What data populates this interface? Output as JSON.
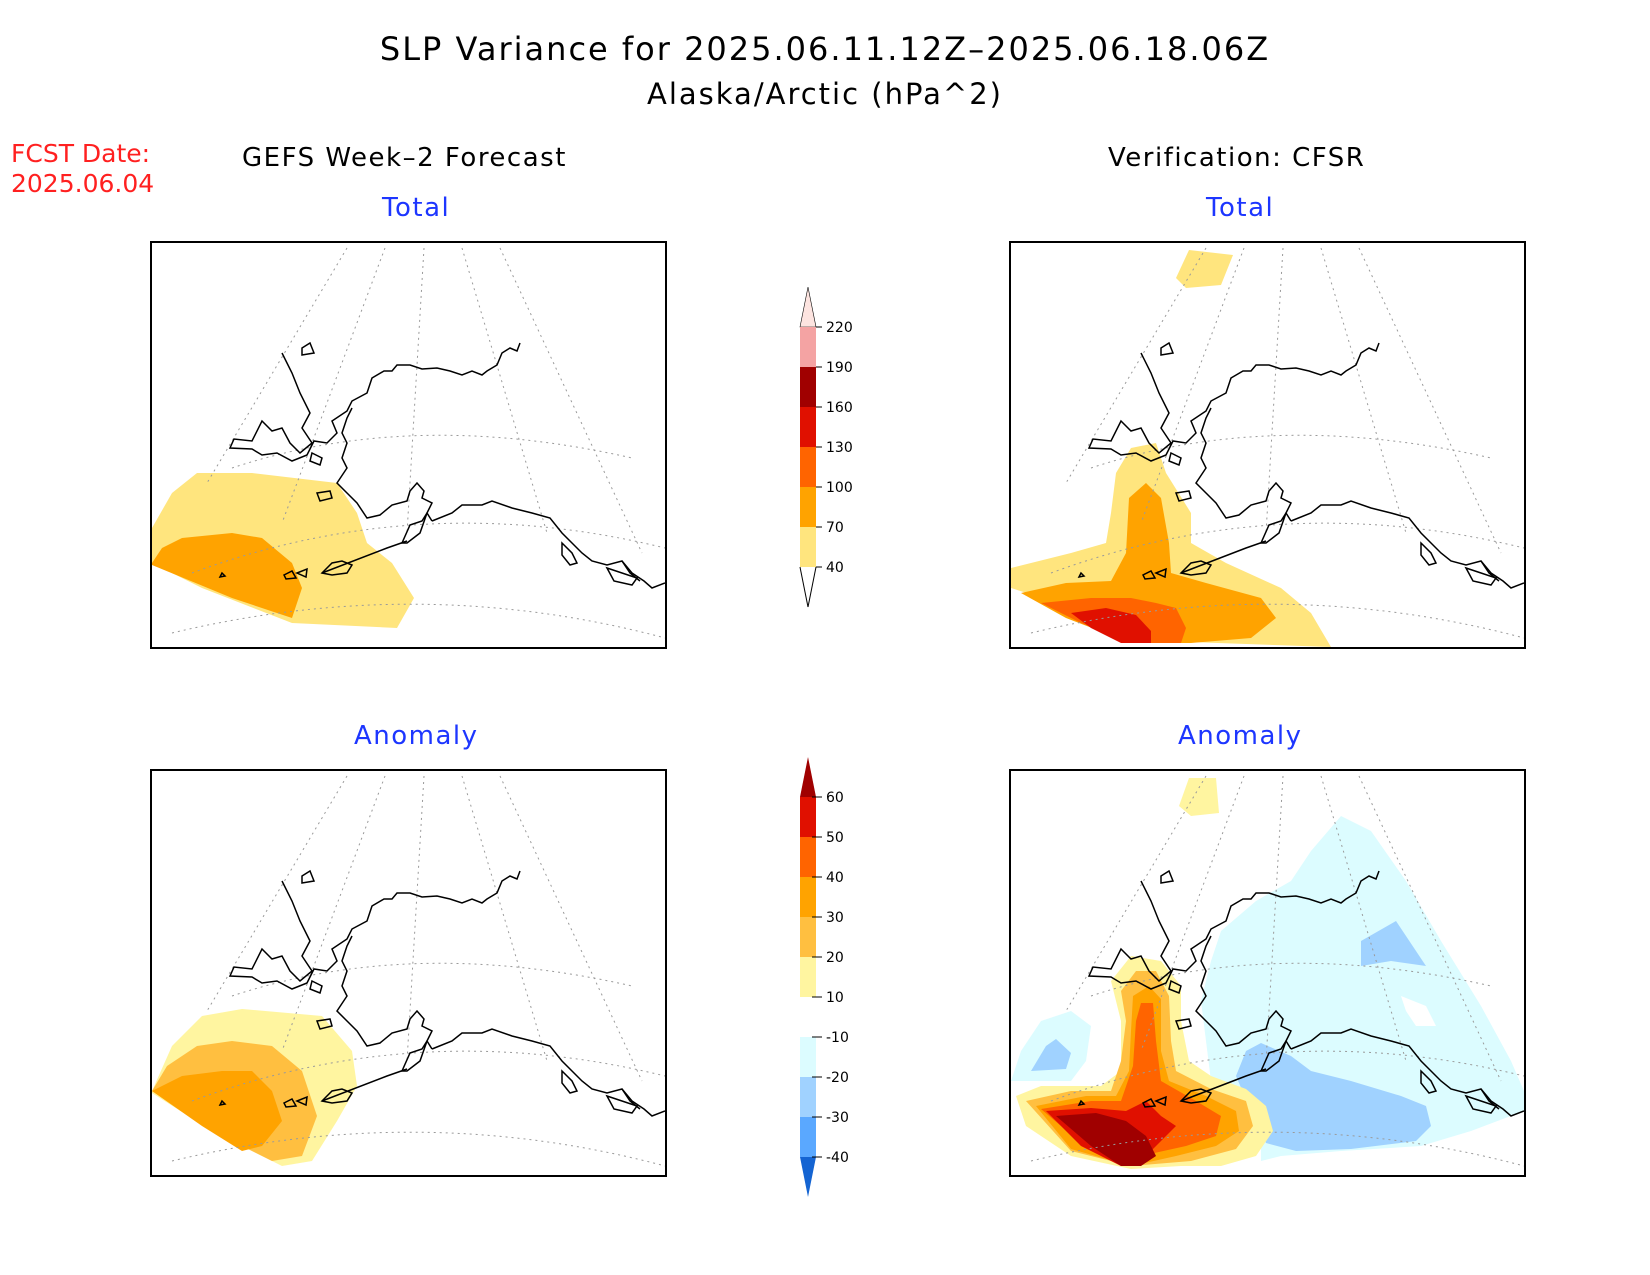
{
  "title": "SLP Variance for 2025.06.11.12Z–2025.06.18.06Z",
  "subtitle": "Alaska/Arctic (hPa^2)",
  "fcst_date": {
    "label": "FCST Date:",
    "value": "2025.06.04"
  },
  "left_header": "GEFS Week–2 Forecast",
  "right_header": "Verification: CFSR",
  "panels": {
    "forecast_total": {
      "label": "Total"
    },
    "verification_total": {
      "label": "Total"
    },
    "forecast_anomaly": {
      "label": "Anomaly"
    },
    "verification_anomaly": {
      "label": "Anomaly"
    }
  },
  "colorbar_total": {
    "labels": [
      "220",
      "190",
      "160",
      "130",
      "100",
      "70",
      "40"
    ],
    "colors": [
      "#fde4e0",
      "#f4a3a3",
      "#a00000",
      "#e01000",
      "#ff6400",
      "#ffa300",
      "#ffe57e"
    ]
  },
  "colorbar_anomaly": {
    "labels": [
      "60",
      "50",
      "40",
      "30",
      "20",
      "10",
      "-10",
      "-20",
      "-30",
      "-40"
    ],
    "colors": [
      "#a00000",
      "#e01000",
      "#ff6400",
      "#ffa300",
      "#ffbf40",
      "#fff5a0",
      "#ffffff",
      "#dcfcff",
      "#a0d2ff",
      "#5aa8ff",
      "#1e78e6",
      "#1464d2"
    ]
  }
}
